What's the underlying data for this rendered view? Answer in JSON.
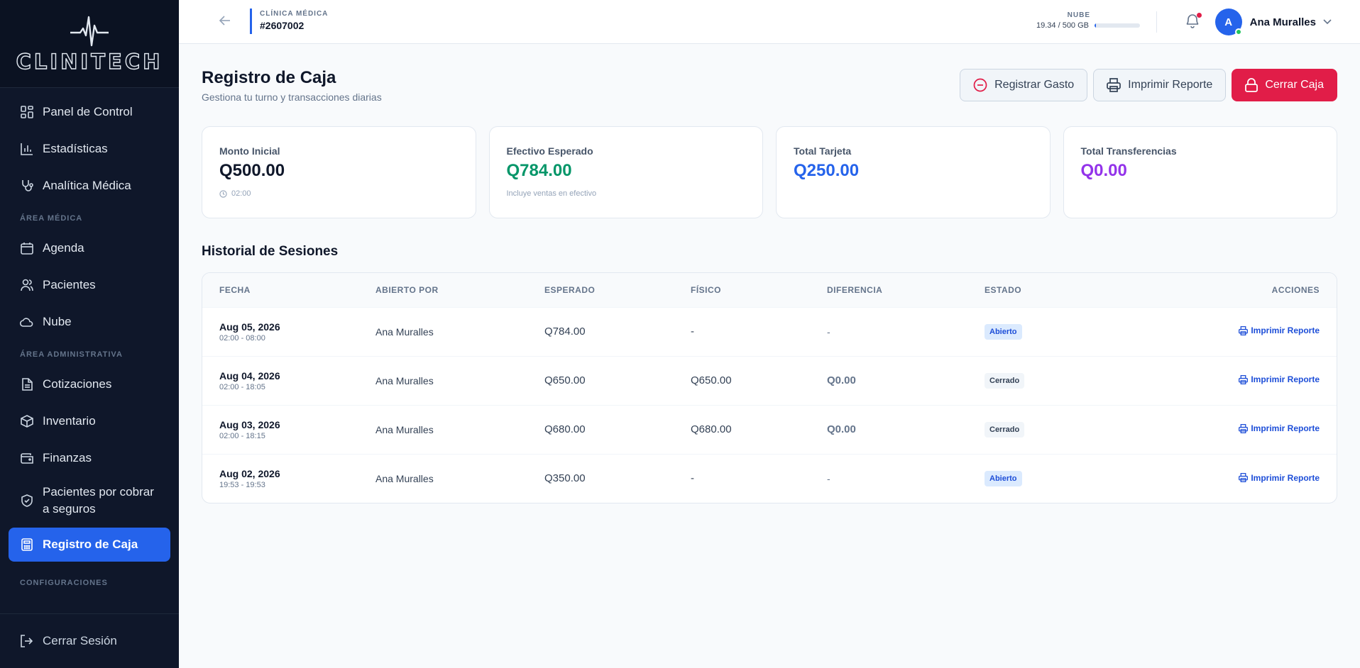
{
  "brand": {
    "name": "CLINITECH"
  },
  "sidebar": {
    "items_top": [
      {
        "label": "Panel de Control",
        "icon": "dashboard-icon"
      },
      {
        "label": "Estadísticas",
        "icon": "bar-chart-icon"
      },
      {
        "label": "Analítica Médica",
        "icon": "stethoscope-icon"
      }
    ],
    "section_medical": "ÁREA MÉDICA",
    "items_medical": [
      {
        "label": "Agenda",
        "icon": "calendar-icon"
      },
      {
        "label": "Pacientes",
        "icon": "users-icon"
      },
      {
        "label": "Nube",
        "icon": "cloud-icon"
      }
    ],
    "section_admin": "ÁREA ADMINISTRATIVA",
    "items_admin": [
      {
        "label": "Cotizaciones",
        "icon": "document-icon"
      },
      {
        "label": "Inventario",
        "icon": "box-icon"
      },
      {
        "label": "Finanzas",
        "icon": "wallet-icon"
      },
      {
        "label": "Pacientes por cobrar a seguros",
        "icon": "shield-icon"
      },
      {
        "label": "Registro de Caja",
        "icon": "calculator-icon",
        "active": true
      }
    ],
    "section_config": "CONFIGURACIONES",
    "logout": "Cerrar Sesión"
  },
  "topbar": {
    "clinic_label": "CLÍNICA MÉDICA",
    "clinic_id": "#2607002",
    "cloud_label": "NUBE",
    "cloud_usage": "19.34 / 500 GB",
    "cloud_fraction": 0.039,
    "user_initial": "A",
    "user_name": "Ana Muralles"
  },
  "page": {
    "title": "Registro de Caja",
    "subtitle": "Gestiona tu turno y transacciones diarias",
    "actions": {
      "register_expense": "Registrar Gasto",
      "print_report": "Imprimir Reporte",
      "close_register": "Cerrar Caja"
    }
  },
  "cards": [
    {
      "label": "Monto Inicial",
      "value": "Q500.00",
      "color": "#0f172a",
      "note": "02:00",
      "note_icon": "clock-icon"
    },
    {
      "label": "Efectivo Esperado",
      "value": "Q784.00",
      "color": "#059669",
      "note": "Incluye ventas en efectivo"
    },
    {
      "label": "Total Tarjeta",
      "value": "Q250.00",
      "color": "#2563eb",
      "note": ""
    },
    {
      "label": "Total Transferencias",
      "value": "Q0.00",
      "color": "#9333ea",
      "note": ""
    }
  ],
  "history": {
    "title": "Historial de Sesiones",
    "columns": [
      "FECHA",
      "ABIERTO POR",
      "ESPERADO",
      "FÍSICO",
      "DIFERENCIA",
      "ESTADO",
      "ACCIONES"
    ],
    "rows": [
      {
        "date": "Aug 05, 2026",
        "time": "02:00 - 08:00",
        "opened_by": "Ana Muralles",
        "expected": "Q784.00",
        "physical": "-",
        "difference": "-",
        "status": "Abierto",
        "action": "Imprimir Reporte"
      },
      {
        "date": "Aug 04, 2026",
        "time": "02:00 - 18:05",
        "opened_by": "Ana Muralles",
        "expected": "Q650.00",
        "physical": "Q650.00",
        "difference": "Q0.00",
        "status": "Cerrado",
        "action": "Imprimir Reporte"
      },
      {
        "date": "Aug 03, 2026",
        "time": "02:00 - 18:15",
        "opened_by": "Ana Muralles",
        "expected": "Q680.00",
        "physical": "Q680.00",
        "difference": "Q0.00",
        "status": "Cerrado",
        "action": "Imprimir Reporte"
      },
      {
        "date": "Aug 02, 2026",
        "time": "19:53 - 19:53",
        "opened_by": "Ana Muralles",
        "expected": "Q350.00",
        "physical": "-",
        "difference": "-",
        "status": "Abierto",
        "action": "Imprimir Reporte"
      }
    ]
  }
}
